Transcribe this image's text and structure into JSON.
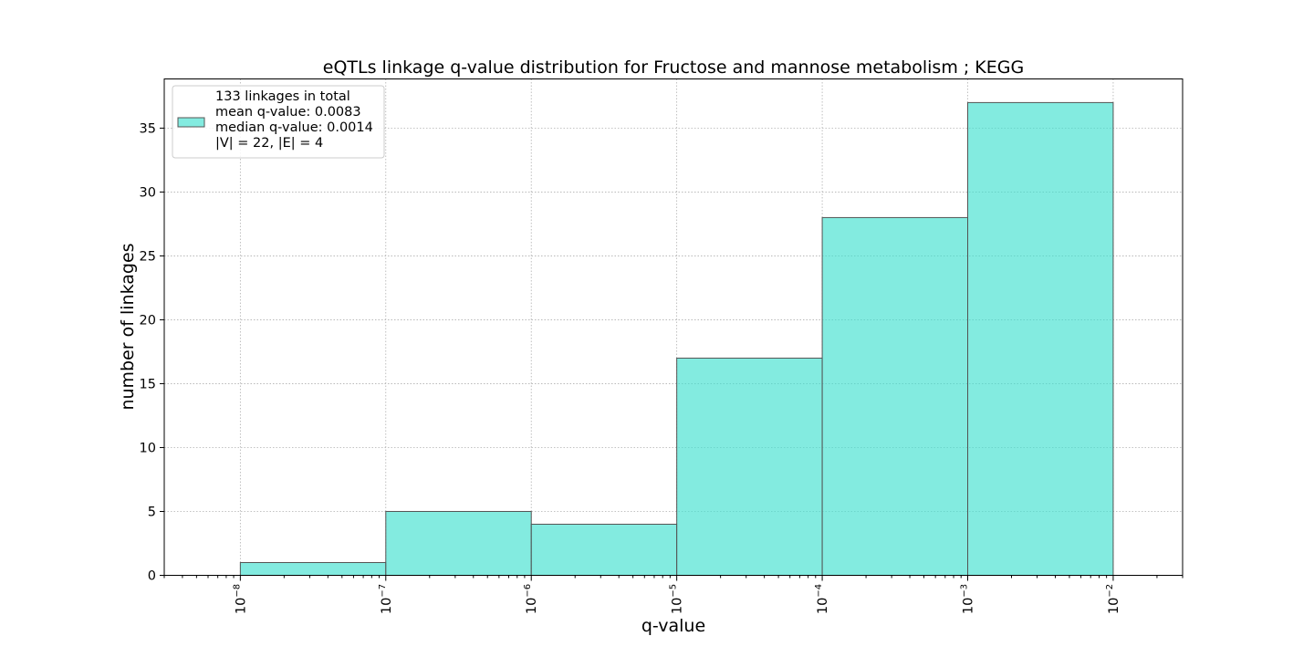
{
  "chart_data": {
    "type": "bar",
    "title": "eQTLs linkage q-value distribution for Fructose and mannose metabolism ; KEGG",
    "xlabel": "q-value",
    "ylabel": "number of linkages",
    "xscale": "log",
    "xlim": [
      3e-09,
      0.03
    ],
    "ylim": [
      0,
      38.85
    ],
    "x_tick_values": [
      1e-08,
      1e-07,
      1e-06,
      1e-05,
      0.0001,
      0.001,
      0.01
    ],
    "x_tick_exponents": [
      "−8",
      "−7",
      "−6",
      "−5",
      "−4",
      "−3",
      "−2"
    ],
    "x_tick_base": "10",
    "y_ticks": [
      0,
      5,
      10,
      15,
      20,
      25,
      30,
      35
    ],
    "bins": [
      {
        "from": 1e-08,
        "to": 1e-07,
        "count": 1
      },
      {
        "from": 1e-07,
        "to": 1e-06,
        "count": 5
      },
      {
        "from": 1e-06,
        "to": 1e-05,
        "count": 4
      },
      {
        "from": 1e-05,
        "to": 0.0001,
        "count": 17
      },
      {
        "from": 0.0001,
        "to": 0.001,
        "count": 28
      },
      {
        "from": 0.001,
        "to": 0.01,
        "count": 37
      }
    ],
    "bar_color": "#40E0D0",
    "grid": true,
    "legend": {
      "placement": "upper-left",
      "lines": [
        "133 linkages in total",
        "mean q-value: 0.0083",
        "median q-value: 0.0014",
        "|V| = 22, |E| = 4"
      ]
    }
  }
}
